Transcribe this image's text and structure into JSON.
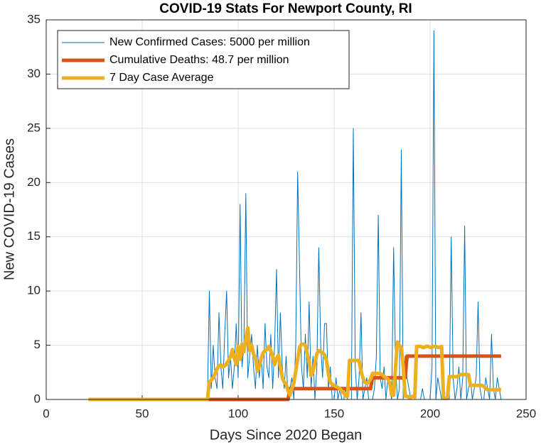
{
  "chart_data": {
    "type": "line",
    "title": "COVID-19 Stats For Newport County, RI",
    "xlabel": "Days Since 2020 Began",
    "ylabel": "New COVID-19 Cases",
    "xlim": [
      0,
      250
    ],
    "xticks": [
      0,
      50,
      100,
      150,
      200,
      250
    ],
    "ylim": [
      0,
      35
    ],
    "yticks": [
      0,
      5,
      10,
      15,
      20,
      25,
      30,
      35
    ],
    "grid": true,
    "legend": "top-left",
    "x": [
      22,
      23,
      24,
      25,
      26,
      27,
      28,
      29,
      30,
      31,
      32,
      33,
      34,
      35,
      36,
      37,
      38,
      39,
      40,
      41,
      42,
      43,
      44,
      45,
      46,
      47,
      48,
      49,
      50,
      51,
      52,
      53,
      54,
      55,
      56,
      57,
      58,
      59,
      60,
      61,
      62,
      63,
      64,
      65,
      66,
      67,
      68,
      69,
      70,
      71,
      72,
      73,
      74,
      75,
      76,
      77,
      78,
      79,
      80,
      81,
      82,
      83,
      84,
      85,
      86,
      87,
      88,
      89,
      90,
      91,
      92,
      93,
      94,
      95,
      96,
      97,
      98,
      99,
      100,
      101,
      102,
      103,
      104,
      105,
      106,
      107,
      108,
      109,
      110,
      111,
      112,
      113,
      114,
      115,
      116,
      117,
      118,
      119,
      120,
      121,
      122,
      123,
      124,
      125,
      126,
      127,
      128,
      129,
      130,
      131,
      132,
      133,
      134,
      135,
      136,
      137,
      138,
      139,
      140,
      141,
      142,
      143,
      144,
      145,
      146,
      147,
      148,
      149,
      150,
      151,
      152,
      153,
      154,
      155,
      156,
      157,
      158,
      159,
      160,
      161,
      162,
      163,
      164,
      165,
      166,
      167,
      168,
      169,
      170,
      171,
      172,
      173,
      174,
      175,
      176,
      177,
      178,
      179,
      180,
      181,
      182,
      183,
      184,
      185,
      186,
      187,
      188,
      189,
      190,
      191,
      192,
      193,
      194,
      195,
      196,
      197,
      198,
      199,
      200,
      201,
      202,
      203,
      204,
      205,
      206,
      207,
      208,
      209,
      210,
      211,
      212,
      213,
      214,
      215,
      216,
      217,
      218,
      219,
      220,
      221,
      222,
      223,
      224,
      225,
      226,
      227,
      228,
      229,
      230,
      231,
      232,
      233,
      234,
      235,
      236,
      237
    ],
    "series": [
      {
        "name": "New Confirmed Cases: 5000 per million",
        "color": "#0072BD",
        "width": 1,
        "values": [
          0,
          0,
          0,
          0,
          0,
          0,
          0,
          0,
          0,
          0,
          0,
          0,
          0,
          0,
          0,
          0,
          0,
          0,
          0,
          0,
          0,
          0,
          0,
          0,
          0,
          0,
          0,
          0,
          0,
          0,
          0,
          0,
          0,
          0,
          0,
          0,
          0,
          0,
          0,
          0,
          0,
          0,
          0,
          0,
          0,
          0,
          0,
          0,
          0,
          0,
          0,
          0,
          0,
          0,
          0,
          0,
          0,
          0,
          0,
          0,
          0,
          0,
          0,
          10,
          1,
          5,
          2,
          1,
          8,
          3,
          1,
          6,
          10,
          2,
          4,
          1,
          3,
          7,
          2,
          18,
          3,
          5,
          19,
          2,
          4,
          6,
          3,
          1,
          5,
          2,
          4,
          1,
          7,
          3,
          2,
          6,
          1,
          5,
          12,
          2,
          8,
          3,
          1,
          4,
          0,
          1,
          2,
          0,
          5,
          21,
          12,
          3,
          1,
          6,
          2,
          9,
          1,
          4,
          0,
          3,
          14,
          5,
          2,
          7,
          7,
          1,
          3,
          0,
          0,
          2,
          0,
          1,
          0,
          0,
          1,
          0,
          0,
          0,
          25,
          3,
          0,
          2,
          8,
          0,
          1,
          2,
          0,
          0,
          0,
          1,
          4,
          17,
          2,
          1,
          3,
          0,
          2,
          1,
          0,
          14,
          3,
          0,
          1,
          23,
          0,
          4,
          2,
          1,
          0,
          0,
          0,
          0,
          0,
          0,
          1,
          0,
          0,
          0,
          0,
          3,
          34,
          0,
          2,
          1,
          0,
          0,
          0,
          0,
          0,
          15,
          2,
          0,
          1,
          3,
          0,
          2,
          16,
          0,
          1,
          2,
          0,
          1,
          2,
          9,
          1,
          0,
          0,
          2,
          1,
          0,
          6,
          1,
          0,
          2,
          1,
          0
        ]
      },
      {
        "name": "Cumulative Deaths: 48.7 per million",
        "color": "#D95319",
        "width": 5,
        "values": [
          0,
          0,
          0,
          0,
          0,
          0,
          0,
          0,
          0,
          0,
          0,
          0,
          0,
          0,
          0,
          0,
          0,
          0,
          0,
          0,
          0,
          0,
          0,
          0,
          0,
          0,
          0,
          0,
          0,
          0,
          0,
          0,
          0,
          0,
          0,
          0,
          0,
          0,
          0,
          0,
          0,
          0,
          0,
          0,
          0,
          0,
          0,
          0,
          0,
          0,
          0,
          0,
          0,
          0,
          0,
          0,
          0,
          0,
          0,
          0,
          0,
          0,
          0,
          0,
          0,
          0,
          0,
          0,
          0,
          0,
          0,
          0,
          0,
          0,
          0,
          0,
          0,
          0,
          0,
          0,
          0,
          0,
          0,
          0,
          0,
          0,
          0,
          0,
          0,
          0,
          0,
          0,
          0,
          0,
          0,
          0,
          0,
          0,
          0,
          0,
          0,
          0,
          0,
          0,
          0,
          1,
          1,
          1,
          1,
          1,
          1,
          1,
          1,
          1,
          1,
          1,
          1,
          1,
          1,
          1,
          1,
          1,
          1,
          1,
          1,
          1,
          1,
          1,
          1,
          1,
          1,
          1,
          1,
          1,
          1,
          1,
          1,
          1,
          1,
          1,
          1,
          1,
          1,
          1,
          1,
          1,
          1,
          1,
          2,
          2,
          2,
          2,
          2,
          2,
          2,
          2,
          2,
          2,
          2,
          2,
          2,
          2,
          2,
          2,
          2,
          2,
          4,
          4,
          4,
          4,
          4,
          4,
          4,
          4,
          4,
          4,
          4,
          4,
          4,
          4,
          4,
          4,
          4,
          4,
          4,
          4,
          4,
          4,
          4,
          4,
          4,
          4,
          4,
          4,
          4,
          4,
          4,
          4,
          4,
          4,
          4,
          4,
          4,
          4,
          4,
          4,
          4,
          4,
          4,
          4,
          4,
          4,
          4,
          4,
          4,
          4
        ]
      },
      {
        "name": "7 Day Case Average",
        "color": "#EDB120",
        "width": 5,
        "values": [
          0,
          0,
          0,
          0,
          0,
          0,
          0,
          0,
          0,
          0,
          0,
          0,
          0,
          0,
          0,
          0,
          0,
          0,
          0,
          0,
          0,
          0,
          0,
          0,
          0,
          0,
          0,
          0,
          0,
          0,
          0,
          0,
          0,
          0,
          0,
          0,
          0,
          0,
          0,
          0,
          0,
          0,
          0,
          0,
          0,
          0,
          0,
          0,
          0,
          0,
          0,
          0,
          0,
          0,
          0,
          0,
          0,
          0,
          0,
          0,
          0,
          0,
          0,
          1.6,
          1.8,
          2.0,
          2.4,
          2.8,
          3.1,
          3.2,
          3.0,
          3.1,
          3.3,
          3.6,
          3.9,
          4.6,
          3.8,
          3.2,
          4.9,
          3.7,
          5.1,
          4.4,
          5.6,
          6.6,
          4.5,
          5.0,
          4.2,
          3.8,
          2.6,
          3.0,
          3.8,
          4.3,
          4.5,
          4.6,
          4.9,
          4.5,
          4.0,
          3.2,
          3.8,
          4.1,
          3.0,
          2.0,
          1.6,
          1.4,
          0.8,
          0.4,
          1.0,
          1.5,
          2.6,
          3.7,
          4.8,
          5.1,
          5.1,
          5.0,
          4.2,
          3.5,
          2.2,
          2.6,
          3.4,
          4.2,
          4.5,
          4.4,
          4.3,
          4.1,
          3.6,
          2.4,
          1.6,
          1.4,
          1.3,
          1.2,
          1.1,
          1.0,
          0.8,
          0.6,
          0.3,
          0.3,
          3.6,
          3.6,
          3.6,
          3.6,
          3.6,
          3.6,
          2.6,
          2.0,
          1.6,
          1.5,
          1.6,
          1.9,
          2.4,
          2.4,
          2.4,
          2.4,
          2.4,
          2.3,
          2.1,
          2.0,
          1.9,
          1.5,
          0.4,
          0.4,
          3.0,
          5.3,
          5.0,
          4.8,
          3.0,
          0.3,
          0.3,
          0.2,
          0.2,
          0.3,
          0.2,
          4.9,
          4.9,
          4.9,
          4.8,
          4.8,
          4.9,
          4.9,
          4.8,
          4.8,
          4.9,
          4.9,
          4.8,
          4.8,
          4.9,
          0.1,
          0.1,
          0.1,
          2.1,
          2.1,
          2.1,
          2.1,
          2.1,
          2.2,
          2.3,
          2.3,
          2.3,
          2.3,
          2.3,
          1.3,
          1.3,
          1.3,
          1.3,
          1.3,
          1.3,
          1.3,
          1.2,
          1.0,
          0.9,
          0.9,
          0.9,
          0.9,
          0.9,
          0.9,
          0.9,
          0.9
        ]
      }
    ]
  }
}
